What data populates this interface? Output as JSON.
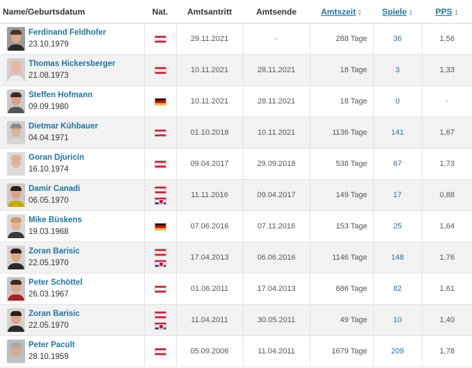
{
  "headers": {
    "name": "Name/Geburtsdatum",
    "nat": "Nat.",
    "start": "Amtsantritt",
    "end": "Amtsende",
    "tenure": "Amtszeit",
    "games": "Spiele",
    "pps": "PPS",
    "sort_icon": "↕"
  },
  "rows": [
    {
      "name": "Ferdinand Feldhofer",
      "dob": "23.10.1979",
      "flags": [
        "at"
      ],
      "start": "29.11.2021",
      "end": "-",
      "tenure": "288 Tage",
      "games": "36",
      "pps": "1,56"
    },
    {
      "name": "Thomas Hickersberger",
      "dob": "21.08.1973",
      "flags": [
        "at"
      ],
      "start": "10.11.2021",
      "end": "28.11.2021",
      "tenure": "18 Tage",
      "games": "3",
      "pps": "1,33"
    },
    {
      "name": "Steffen Hofmann",
      "dob": "09.09.1980",
      "flags": [
        "de"
      ],
      "start": "10.11.2021",
      "end": "28.11.2021",
      "tenure": "18 Tage",
      "games": "0",
      "pps": "-"
    },
    {
      "name": "Dietmar Kühbauer",
      "dob": "04.04.1971",
      "flags": [
        "at"
      ],
      "start": "01.10.2018",
      "end": "10.11.2021",
      "tenure": "1136 Tage",
      "games": "141",
      "pps": "1,67"
    },
    {
      "name": "Goran Djuricin",
      "dob": "16.10.1974",
      "flags": [
        "at"
      ],
      "start": "09.04.2017",
      "end": "29.09.2018",
      "tenure": "538 Tage",
      "games": "67",
      "pps": "1,73"
    },
    {
      "name": "Damir Canadi",
      "dob": "06.05.1970",
      "flags": [
        "at",
        "hr"
      ],
      "start": "11.11.2016",
      "end": "09.04.2017",
      "tenure": "149 Tage",
      "games": "17",
      "pps": "0,88"
    },
    {
      "name": "Mike Büskens",
      "dob": "19.03.1968",
      "flags": [
        "de"
      ],
      "start": "07.06.2016",
      "end": "07.11.2016",
      "tenure": "153 Tage",
      "games": "25",
      "pps": "1,64"
    },
    {
      "name": "Zoran Barisic",
      "dob": "22.05.1970",
      "flags": [
        "at",
        "hr"
      ],
      "start": "17.04.2013",
      "end": "06.06.2016",
      "tenure": "1146 Tage",
      "games": "148",
      "pps": "1,76"
    },
    {
      "name": "Peter Schöttel",
      "dob": "26.03.1967",
      "flags": [
        "at"
      ],
      "start": "01.06.2011",
      "end": "17.04.2013",
      "tenure": "686 Tage",
      "games": "82",
      "pps": "1,61"
    },
    {
      "name": "Zoran Barisic",
      "dob": "22.05.1970",
      "flags": [
        "at",
        "hr"
      ],
      "start": "11.04.2011",
      "end": "30.05.2011",
      "tenure": "49 Tage",
      "games": "10",
      "pps": "1,40"
    },
    {
      "name": "Peter Pacult",
      "dob": "28.10.1959",
      "flags": [
        "at"
      ],
      "start": "05.09.2006",
      "end": "11.04.2011",
      "tenure": "1679 Tage",
      "games": "209",
      "pps": "1,78"
    }
  ]
}
